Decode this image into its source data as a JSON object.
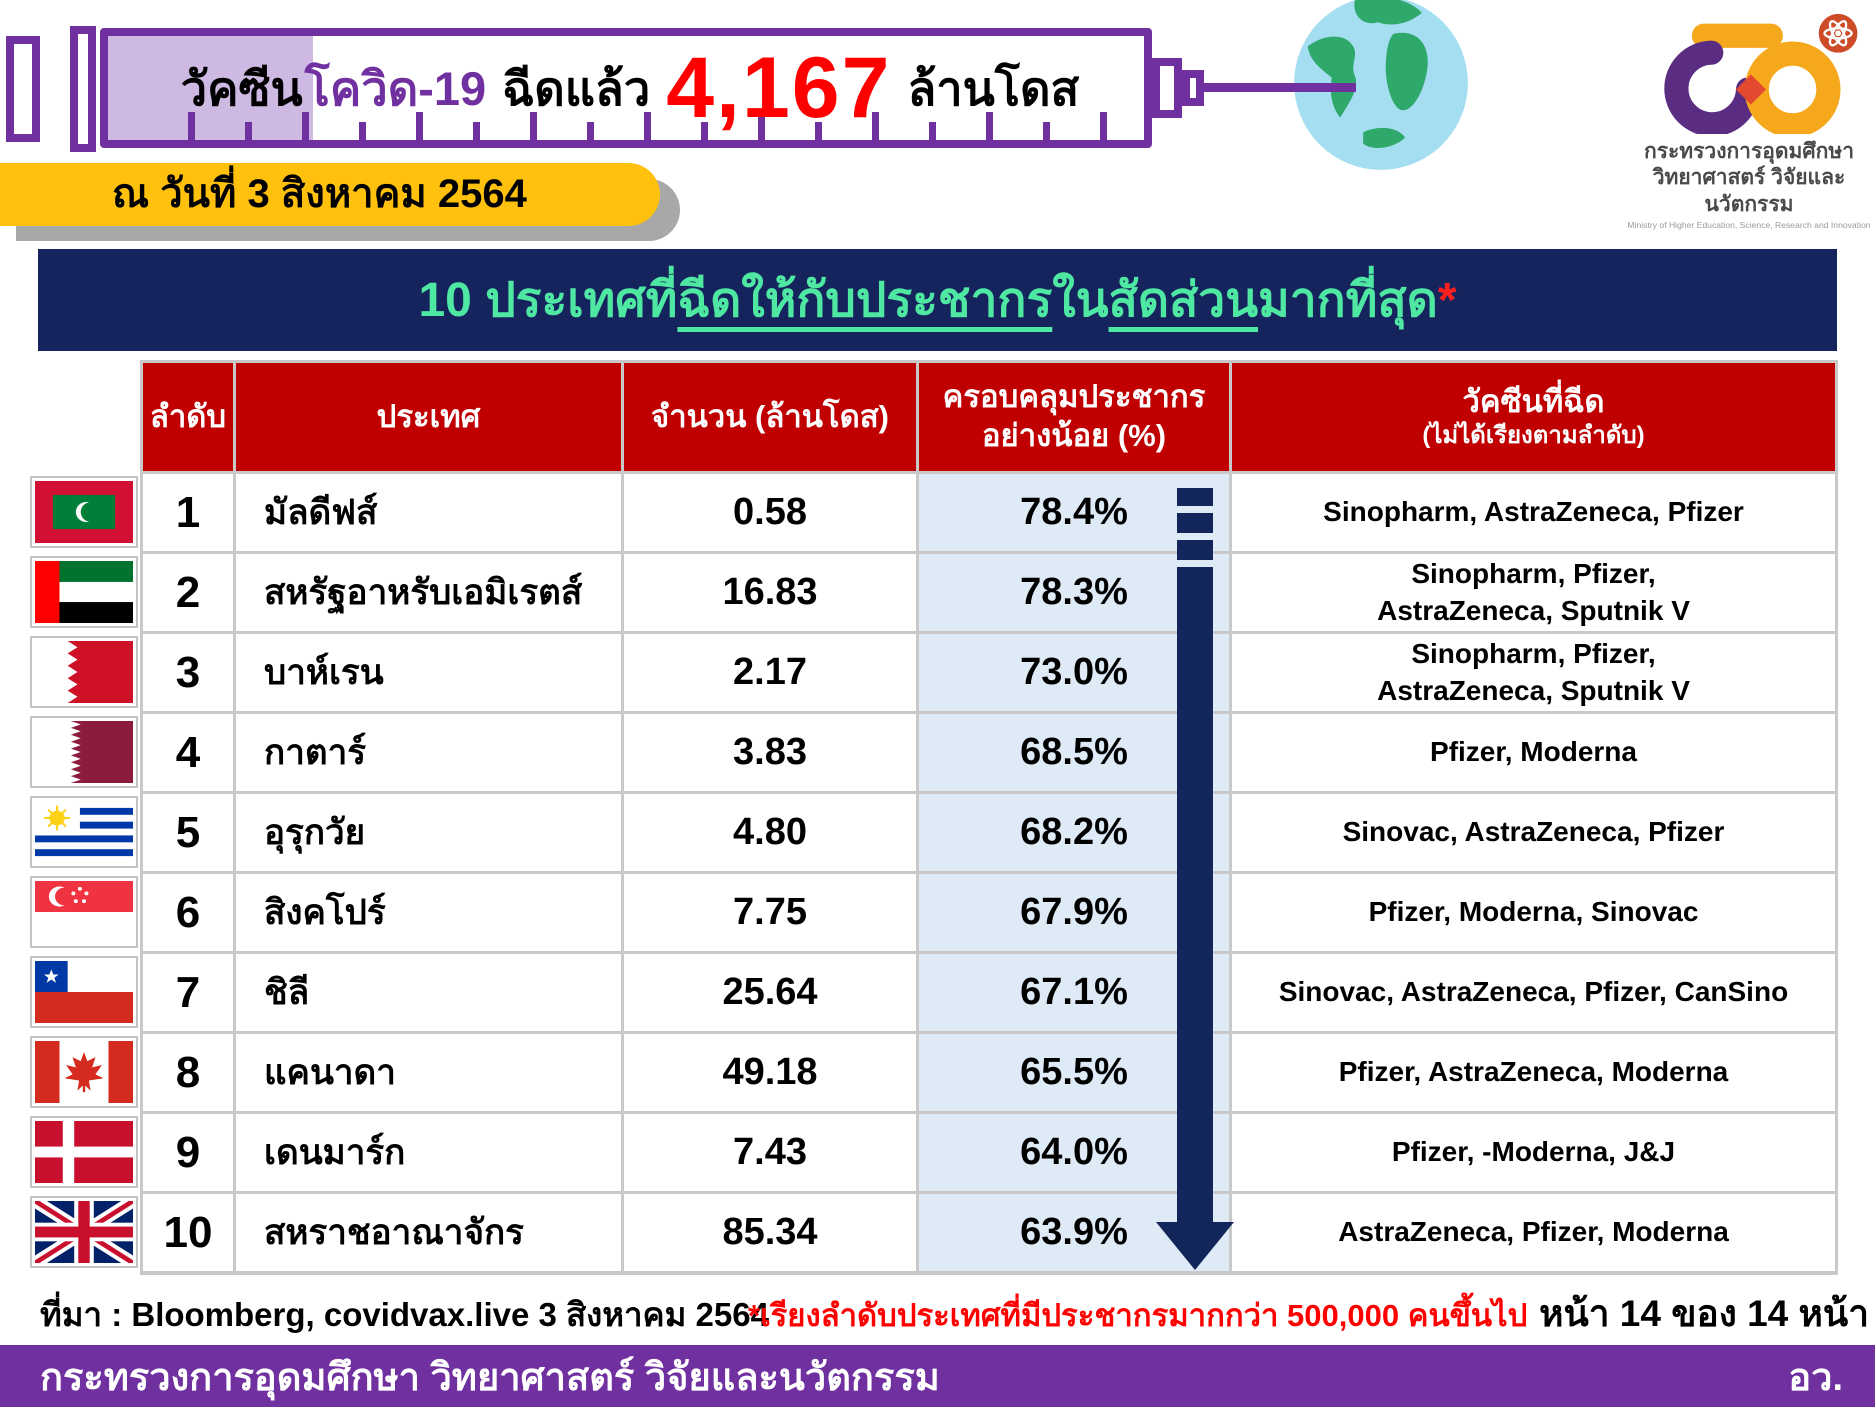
{
  "header": {
    "title_prefix": "วัคซีน",
    "title_covid": "โควิด-19",
    "title_middle": "ฉีดแล้ว",
    "total_doses": "4,167",
    "title_suffix": "ล้านโดส",
    "globe_icon": "globe-earth-icon",
    "syringe_icon": "syringe-banner",
    "date_banner": "ณ วันที่ 3 สิงหาคม 2564",
    "logo": {
      "atom_icon": "atom-icon",
      "line1": "กระทรวงการอุดมศึกษา",
      "line2": "วิทยาศาสตร์ วิจัยและนวัตกรรม",
      "line3": "Ministry of Higher Education, Science, Research and Innovation"
    }
  },
  "section_title": {
    "part1": "10 ประเทศที่",
    "part2_underlined": "ฉีดให้กับประชากร",
    "part3": "ใน",
    "part4_underlined": "สัดส่วน",
    "part5": "มากที่สุด",
    "asterisk": "*"
  },
  "table": {
    "headers": {
      "rank": "ลำดับ",
      "country": "ประเทศ",
      "doses": "จำนวน (ล้านโดส)",
      "coverage": "ครอบคลุมประชากร\nอย่างน้อย (%)",
      "vaccines": "วัคซีนที่ฉีด",
      "vaccines_note": "(ไม่ได้เรียงตามลำดับ)"
    },
    "rows": [
      {
        "rank": "1",
        "flag": "mv",
        "flag_name": "maldives-flag-icon",
        "country": "มัลดีฟส์",
        "doses": "0.58",
        "coverage": "78.4%",
        "vaccines": "Sinopharm, AstraZeneca, Pfizer"
      },
      {
        "rank": "2",
        "flag": "ae",
        "flag_name": "uae-flag-icon",
        "country": "สหรัฐอาหรับเอมิเรตส์",
        "doses": "16.83",
        "coverage": "78.3%",
        "vaccines": "Sinopharm, Pfizer,\nAstraZeneca,  Sputnik V"
      },
      {
        "rank": "3",
        "flag": "bh",
        "flag_name": "bahrain-flag-icon",
        "country": "บาห์เรน",
        "doses": "2.17",
        "coverage": "73.0%",
        "vaccines": "Sinopharm, Pfizer,\nAstraZeneca, Sputnik V"
      },
      {
        "rank": "4",
        "flag": "qa",
        "flag_name": "qatar-flag-icon",
        "country": "กาตาร์",
        "doses": "3.83",
        "coverage": "68.5%",
        "vaccines": "Pfizer, Moderna"
      },
      {
        "rank": "5",
        "flag": "uy",
        "flag_name": "uruguay-flag-icon",
        "country": "อุรุกวัย",
        "doses": "4.80",
        "coverage": "68.2%",
        "vaccines": "Sinovac, AstraZeneca, Pfizer"
      },
      {
        "rank": "6",
        "flag": "sg",
        "flag_name": "singapore-flag-icon",
        "country": "สิงคโปร์",
        "doses": "7.75",
        "coverage": "67.9%",
        "vaccines": "Pfizer, Moderna, Sinovac"
      },
      {
        "rank": "7",
        "flag": "cl",
        "flag_name": "chile-flag-icon",
        "country": "ชิลี",
        "doses": "25.64",
        "coverage": "67.1%",
        "vaccines": "Sinovac, AstraZeneca, Pfizer, CanSino"
      },
      {
        "rank": "8",
        "flag": "ca",
        "flag_name": "canada-flag-icon",
        "country": "แคนาดา",
        "doses": "49.18",
        "coverage": "65.5%",
        "vaccines": "Pfizer, AstraZeneca, Moderna"
      },
      {
        "rank": "9",
        "flag": "dk",
        "flag_name": "denmark-flag-icon",
        "country": "เดนมาร์ก",
        "doses": "7.43",
        "coverage": "64.0%",
        "vaccines": "Pfizer, -Moderna, J&J"
      },
      {
        "rank": "10",
        "flag": "gb",
        "flag_name": "uk-flag-icon",
        "country": "สหราชอาณาจักร",
        "doses": "85.34",
        "coverage": "63.9%",
        "vaccines": "AstraZeneca, Pfizer, Moderna"
      }
    ]
  },
  "bottom": {
    "source": "ที่มา : Bloomberg, covidvax.live 3 สิงหาคม 2564",
    "note": "*เรียงลำดับประเทศที่มีประชากรมากกว่า 500,000 คนขึ้นไป",
    "page": "หน้า 14 ของ 14 หน้า"
  },
  "footer": {
    "ministry": "กระทรวงการอุดมศึกษา วิทยาศาสตร์ วิจัยและนวัตกรรม",
    "abbrev": "อว."
  },
  "colors": {
    "syringe_purple": "#7030A0",
    "plunger_light_purple": "#CDB9E2",
    "date_yellow": "#FFC10D",
    "banner_navy": "#16245E",
    "title_green": "#4FE8A3",
    "header_red": "#C00000",
    "coverage_light_blue": "#DEEAF5",
    "arrow_navy": "#12265B",
    "accent_red": "#FF0000",
    "footer_purple": "#7030A0"
  }
}
